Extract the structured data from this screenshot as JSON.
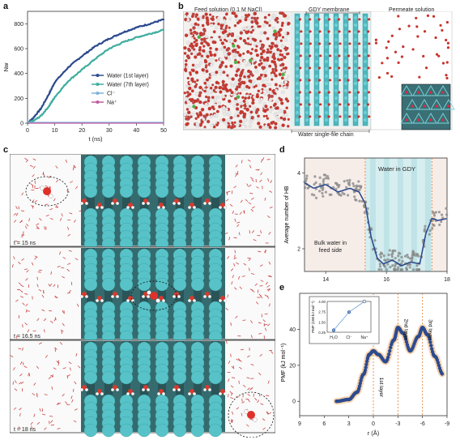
{
  "panels": {
    "a": {
      "letter": "a",
      "ylabel": "N",
      "ylabel_sub": "w",
      "xlabel": "t (ns)",
      "xticks": [
        "0",
        "10",
        "20",
        "30",
        "40",
        "50"
      ],
      "yticks": [
        "0",
        "200",
        "400",
        "600",
        "800"
      ],
      "legend": [
        {
          "label": "Water (1st layer)",
          "color": "#2d4b8e"
        },
        {
          "label": "Water (7th layer)",
          "color": "#3fae9f"
        },
        {
          "label": "Cl⁻",
          "color": "#7fb2d9"
        },
        {
          "label": "Na⁺",
          "color": "#c05aa0"
        }
      ]
    },
    "b": {
      "letter": "b",
      "feed_label": "Feed solution (0.1 M NaCl)",
      "membrane_label": "GDY membrane",
      "permeate_label": "Permeate solution",
      "chain_label": "Water single-file chain"
    },
    "c": {
      "letter": "c",
      "frames": [
        {
          "time": "t = 15 ns"
        },
        {
          "time": "t = 16.5 ns"
        },
        {
          "time": "t = 18 ns"
        }
      ]
    },
    "d": {
      "letter": "d",
      "ylabel": "Average number of HB",
      "xticks": [
        "14",
        "16",
        "18"
      ],
      "yticks": [
        "2",
        "4"
      ],
      "bulk_label_1": "Bulk water in",
      "bulk_label_2": "feed side",
      "gdy_label": "Water in GDY"
    },
    "e": {
      "letter": "e",
      "ylabel": "PMF (kJ mol⁻¹)",
      "xlabel": "r (Å)",
      "xticks": [
        "9",
        "6",
        "3",
        "0",
        "-3",
        "-6",
        "-9"
      ],
      "yticks": [
        "0",
        "20",
        "40"
      ],
      "layer_labels": [
        "1st layer",
        "2nd layer",
        "3rd layer"
      ],
      "inset": {
        "ylabel": "PMF (100 kJ mol⁻¹)",
        "yticks": [
          "0.25",
          "1.50",
          "2.75",
          "4.00"
        ],
        "categories": [
          "H₂O",
          "Cl⁻",
          "Na⁺"
        ],
        "values": [
          0.5,
          2.7,
          4.0
        ]
      }
    }
  },
  "colors": {
    "navy": "#2d4b8e",
    "teal": "#3fae9f",
    "cyan": "#5fc7cf",
    "orange": "#e07b2a",
    "red": "#c8342c"
  },
  "chart_data": [
    {
      "type": "line",
      "panel": "a",
      "xlabel": "t (ns)",
      "ylabel": "Nw",
      "xlim": [
        0,
        50
      ],
      "ylim": [
        0,
        900
      ],
      "series": [
        {
          "name": "Water (1st layer)",
          "x": [
            0,
            2,
            5,
            8,
            10,
            15,
            20,
            25,
            30,
            35,
            40,
            45,
            50
          ],
          "values": [
            0,
            40,
            120,
            240,
            330,
            450,
            540,
            620,
            680,
            730,
            770,
            800,
            835
          ]
        },
        {
          "name": "Water (7th layer)",
          "x": [
            0,
            2,
            5,
            8,
            10,
            15,
            20,
            25,
            30,
            35,
            40,
            45,
            50
          ],
          "values": [
            0,
            15,
            60,
            140,
            210,
            340,
            430,
            520,
            600,
            650,
            690,
            720,
            750
          ]
        },
        {
          "name": "Cl⁻",
          "x": [
            0,
            50
          ],
          "values": [
            0,
            0
          ]
        },
        {
          "name": "Na⁺",
          "x": [
            0,
            50
          ],
          "values": [
            0,
            0
          ]
        }
      ]
    },
    {
      "type": "line",
      "panel": "d",
      "ylabel": "Average number of HB",
      "xlim": [
        13.3,
        18
      ],
      "ylim": [
        1.4,
        4.4
      ],
      "series": [
        {
          "x": [
            13.3,
            13.6,
            14,
            14.4,
            14.8,
            15.1,
            15.3,
            15.5,
            15.7,
            15.9,
            16.2,
            16.5,
            16.8,
            17.1,
            17.3,
            17.5,
            17.7,
            18
          ],
          "values": [
            3.75,
            3.6,
            3.7,
            3.5,
            3.6,
            3.5,
            3.2,
            2.3,
            1.75,
            1.6,
            1.7,
            1.55,
            1.65,
            1.6,
            2.4,
            2.8,
            2.75,
            2.8
          ]
        }
      ]
    },
    {
      "type": "line",
      "panel": "e",
      "xlabel": "r (Å)",
      "ylabel": "PMF (kJ mol⁻¹)",
      "xlim": [
        9,
        -9
      ],
      "ylim": [
        -8,
        60
      ],
      "series": [
        {
          "x": [
            4.5,
            3,
            2,
            1.2,
            0.5,
            0,
            -0.6,
            -1.5,
            -2.5,
            -3,
            -3.6,
            -4.5,
            -5.5,
            -6,
            -6.6,
            -7.5,
            -8.5
          ],
          "values": [
            0,
            1,
            5,
            15,
            26,
            28,
            26,
            22,
            34,
            41,
            38,
            28,
            36,
            41,
            37,
            25,
            15
          ]
        }
      ]
    }
  ]
}
